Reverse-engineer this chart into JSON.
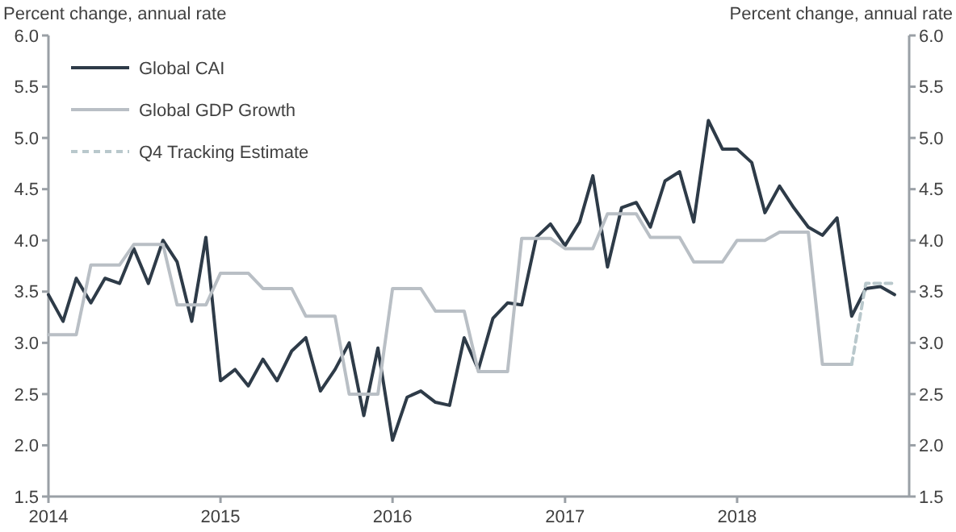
{
  "chart_data": {
    "type": "line",
    "ylabel": "Percent change, annual rate",
    "y2label": "Percent change, annual rate",
    "xlim": [
      "2014",
      "2019"
    ],
    "xticks": [
      "2014",
      "2015",
      "2016",
      "2017",
      "2018"
    ],
    "ylim": [
      1.5,
      6
    ],
    "yticks": [
      1.5,
      {
        "value": 2,
        "label": "2.0"
      },
      2.5,
      {
        "value": 3,
        "label": "3.0"
      },
      3.5,
      {
        "value": 4,
        "label": "4.0"
      },
      4.5,
      {
        "value": 5,
        "label": "5.0"
      },
      5.5,
      {
        "value": 6,
        "label": "6.0"
      }
    ],
    "y2lim": [
      1.5,
      6
    ],
    "y2ticks": [
      1.5,
      {
        "value": 2,
        "label": "2.0"
      },
      2.5,
      {
        "value": 3,
        "label": "3.0"
      },
      3.5,
      {
        "value": 4,
        "label": "4.0"
      },
      4.5,
      {
        "value": 5,
        "label": "5.0"
      },
      5.5,
      {
        "value": 6,
        "label": "6.0"
      }
    ],
    "legend": "top left",
    "grid": false,
    "marker": "none",
    "series": [
      {
        "name": "Global CAI",
        "color": "#2e3b48",
        "line_style": "solid",
        "x": [
          "2014-01",
          "2014-02",
          "2014-03",
          "2014-04",
          "2014-05",
          "2014-06",
          "2014-07",
          "2014-08",
          "2014-09",
          "2014-10",
          "2014-11",
          "2014-12",
          "2015-01",
          "2015-02",
          "2015-03",
          "2015-04",
          "2015-05",
          "2015-06",
          "2015-07",
          "2015-08",
          "2015-09",
          "2015-10",
          "2015-11",
          "2015-12",
          "2016-01",
          "2016-02",
          "2016-03",
          "2016-04",
          "2016-05",
          "2016-06",
          "2016-07",
          "2016-08",
          "2016-09",
          "2016-10",
          "2016-11",
          "2016-12",
          "2017-01",
          "2017-02",
          "2017-03",
          "2017-04",
          "2017-05",
          "2017-06",
          "2017-07",
          "2017-08",
          "2017-09",
          "2017-10",
          "2017-11",
          "2017-12",
          "2018-01",
          "2018-02",
          "2018-03",
          "2018-04",
          "2018-05",
          "2018-06",
          "2018-07",
          "2018-08",
          "2018-09",
          "2018-10",
          "2018-11",
          "2018-12"
        ],
        "values": [
          3.47,
          3.21,
          3.63,
          3.39,
          3.63,
          3.58,
          3.92,
          3.58,
          4.0,
          3.79,
          3.21,
          4.03,
          2.63,
          2.74,
          2.58,
          2.84,
          2.63,
          2.92,
          3.05,
          2.53,
          2.74,
          3.0,
          2.29,
          2.95,
          2.05,
          2.47,
          2.53,
          2.42,
          2.39,
          3.05,
          2.74,
          3.24,
          3.39,
          3.37,
          4.03,
          4.16,
          3.95,
          4.18,
          4.63,
          3.74,
          4.32,
          4.37,
          4.13,
          4.58,
          4.67,
          4.18,
          5.17,
          4.89,
          4.89,
          4.76,
          4.27,
          4.53,
          4.32,
          4.13,
          4.05,
          4.22,
          3.26,
          3.53,
          3.55,
          3.47
        ]
      },
      {
        "name": "Global GDP Growth",
        "color": "#b9bfc5",
        "line_style": "solid",
        "x": [
          "2014-01",
          "2014-03",
          "2014-04",
          "2014-06",
          "2014-07",
          "2014-09",
          "2014-10",
          "2014-12",
          "2015-01",
          "2015-03",
          "2015-04",
          "2015-06",
          "2015-07",
          "2015-09",
          "2015-10",
          "2015-12",
          "2016-01",
          "2016-03",
          "2016-04",
          "2016-06",
          "2016-07",
          "2016-09",
          "2016-10",
          "2016-12",
          "2017-01",
          "2017-03",
          "2017-04",
          "2017-06",
          "2017-07",
          "2017-09",
          "2017-10",
          "2017-12",
          "2018-01",
          "2018-03",
          "2018-04",
          "2018-06",
          "2018-07",
          "2018-09"
        ],
        "values": [
          3.08,
          3.08,
          3.76,
          3.76,
          3.96,
          3.96,
          3.37,
          3.37,
          3.68,
          3.68,
          3.53,
          3.53,
          3.26,
          3.26,
          2.5,
          2.5,
          3.53,
          3.53,
          3.31,
          3.31,
          2.72,
          2.72,
          4.02,
          4.02,
          3.92,
          3.92,
          4.26,
          4.26,
          4.03,
          4.03,
          3.79,
          3.79,
          4.0,
          4.0,
          4.08,
          4.08,
          2.79,
          2.79
        ]
      },
      {
        "name": "Q4 Tracking Estimate",
        "color": "#b9c8cc",
        "line_style": "dashed",
        "x": [
          "2018-09",
          "2018-10",
          "2018-12"
        ],
        "values": [
          2.79,
          3.58,
          3.58
        ]
      }
    ]
  }
}
